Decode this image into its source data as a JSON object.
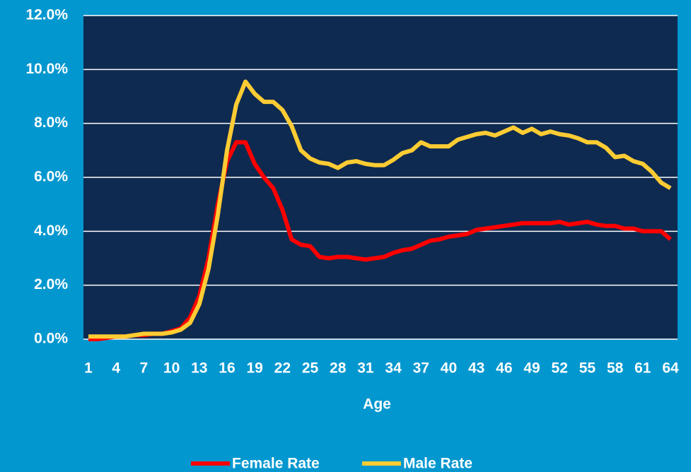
{
  "chart_data": {
    "type": "line",
    "x_label": "Age",
    "categories": [
      1,
      null,
      null,
      4,
      null,
      null,
      7,
      null,
      null,
      10,
      null,
      null,
      13,
      null,
      null,
      16,
      null,
      null,
      19,
      null,
      null,
      22,
      null,
      null,
      25,
      null,
      null,
      28,
      null,
      null,
      31,
      null,
      null,
      34,
      null,
      null,
      37,
      null,
      null,
      40,
      null,
      null,
      43,
      null,
      null,
      46,
      null,
      null,
      49,
      null,
      null,
      52,
      null,
      null,
      55,
      null,
      null,
      58,
      null,
      null,
      61,
      null,
      null,
      64
    ],
    "series": [
      {
        "name": "Female Rate",
        "color": "#ff0000",
        "values": [
          0.0,
          0.0,
          0.05,
          0.1,
          0.1,
          0.15,
          0.15,
          0.2,
          0.2,
          0.3,
          0.4,
          0.8,
          1.6,
          3.0,
          5.0,
          6.6,
          7.3,
          7.3,
          6.5,
          6.0,
          5.6,
          4.8,
          3.7,
          3.5,
          3.45,
          3.05,
          3.0,
          3.05,
          3.05,
          3.0,
          2.95,
          3.0,
          3.05,
          3.2,
          3.3,
          3.35,
          3.5,
          3.65,
          3.7,
          3.8,
          3.85,
          3.9,
          4.05,
          4.1,
          4.15,
          4.2,
          4.25,
          4.3,
          4.3,
          4.3,
          4.3,
          4.35,
          4.25,
          4.3,
          4.35,
          4.25,
          4.2,
          4.2,
          4.1,
          4.1,
          4.0,
          4.0,
          4.0,
          3.7
        ]
      },
      {
        "name": "Male Rate",
        "color": "#ffcc33",
        "values": [
          0.1,
          0.1,
          0.1,
          0.1,
          0.1,
          0.15,
          0.2,
          0.2,
          0.2,
          0.25,
          0.35,
          0.6,
          1.3,
          2.6,
          4.6,
          7.0,
          8.7,
          9.55,
          9.1,
          8.8,
          8.8,
          8.5,
          7.9,
          7.0,
          6.7,
          6.55,
          6.5,
          6.35,
          6.55,
          6.6,
          6.5,
          6.45,
          6.45,
          6.65,
          6.9,
          7.0,
          7.3,
          7.15,
          7.15,
          7.15,
          7.4,
          7.5,
          7.6,
          7.65,
          7.55,
          7.7,
          7.85,
          7.65,
          7.8,
          7.6,
          7.7,
          7.6,
          7.55,
          7.45,
          7.3,
          7.3,
          7.1,
          6.75,
          6.8,
          6.6,
          6.5,
          6.2,
          5.8,
          5.6
        ]
      }
    ],
    "ylim": [
      0,
      12
    ],
    "yticks": [
      {
        "value": 0,
        "label": "0.0%"
      },
      {
        "value": 2,
        "label": "2.0%"
      },
      {
        "value": 4,
        "label": "4.0%"
      },
      {
        "value": 6,
        "label": "6.0%"
      },
      {
        "value": 8,
        "label": "8.0%"
      },
      {
        "value": 10,
        "label": "10.0%"
      },
      {
        "value": 12,
        "label": "12.0%"
      }
    ],
    "grid": true,
    "legend": "bottom",
    "plot_color": "#0e2a50"
  }
}
